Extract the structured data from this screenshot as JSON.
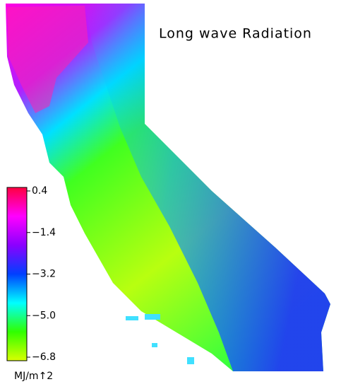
{
  "title": "Long wave Radiation",
  "colorbar": {
    "range": [
      -6.8,
      0.4
    ],
    "ticks": [
      0.4,
      {
        "value": -1.4,
        "label": "−1.4"
      },
      {
        "value": -3.2,
        "label": "−3.2"
      },
      {
        "value": -5.0,
        "label": "−5.0"
      },
      {
        "value": -6.8,
        "label": "−6.8"
      }
    ],
    "colors": [
      "#ff0040",
      "#ff00ff",
      "#8a00ff",
      "#0040ff",
      "#00ffff",
      "#30ff00",
      "#d8ff00"
    ],
    "unit": "MJ/m↑2"
  }
}
